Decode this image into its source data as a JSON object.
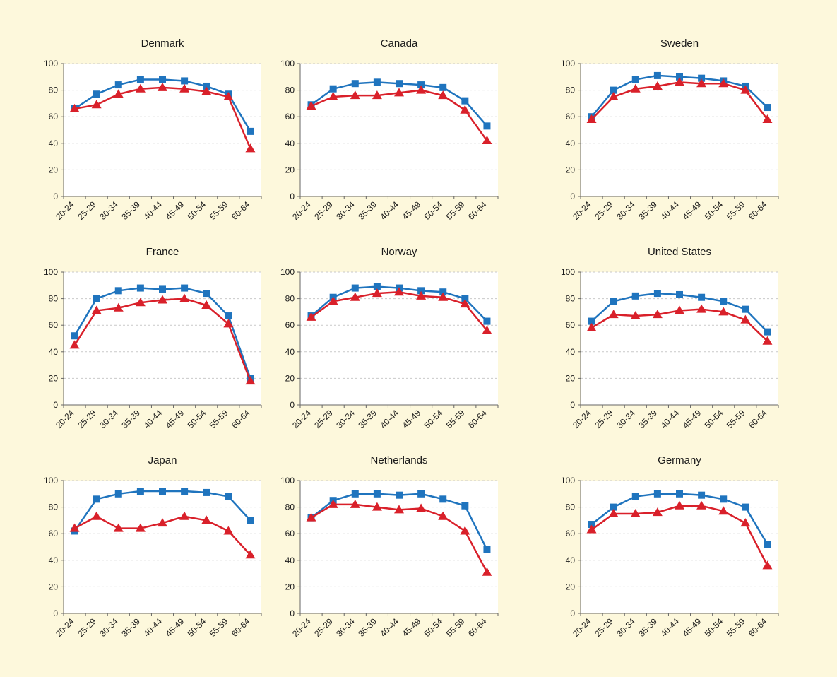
{
  "chart_data": [
    {
      "type": "line",
      "title": "Denmark",
      "categories": [
        "20-24",
        "25-29",
        "30-34",
        "35-39",
        "40-44",
        "45-49",
        "50-54",
        "55-59",
        "60-64"
      ],
      "ylim": [
        0,
        100
      ],
      "yticks": [
        0,
        20,
        40,
        60,
        80,
        100
      ],
      "grid": "horizontal",
      "series": [
        {
          "values": [
            66,
            77,
            84,
            88,
            88,
            87,
            83,
            77,
            49
          ],
          "color": "#1f74be",
          "marker": "square"
        },
        {
          "values": [
            66,
            69,
            77,
            81,
            82,
            81,
            79,
            75,
            36
          ],
          "color": "#d9202a",
          "marker": "triangle"
        }
      ]
    },
    {
      "type": "line",
      "title": "Canada",
      "categories": [
        "20-24",
        "25-29",
        "30-34",
        "35-39",
        "40-44",
        "45-49",
        "50-54",
        "55-59",
        "60-64"
      ],
      "ylim": [
        0,
        100
      ],
      "yticks": [
        0,
        20,
        40,
        60,
        80,
        100
      ],
      "grid": "horizontal",
      "series": [
        {
          "values": [
            69,
            81,
            85,
            86,
            85,
            84,
            82,
            72,
            53
          ],
          "color": "#1f74be",
          "marker": "square"
        },
        {
          "values": [
            68,
            75,
            76,
            76,
            78,
            80,
            76,
            65,
            42
          ],
          "color": "#d9202a",
          "marker": "triangle"
        }
      ]
    },
    {
      "type": "line",
      "title": "Sweden",
      "categories": [
        "20-24",
        "25-29",
        "30-34",
        "35-39",
        "40-44",
        "45-49",
        "50-54",
        "55-59",
        "60-64"
      ],
      "ylim": [
        0,
        100
      ],
      "yticks": [
        0,
        20,
        40,
        60,
        80,
        100
      ],
      "grid": "horizontal",
      "series": [
        {
          "values": [
            60,
            80,
            88,
            91,
            90,
            89,
            87,
            83,
            67
          ],
          "color": "#1f74be",
          "marker": "square"
        },
        {
          "values": [
            58,
            75,
            81,
            83,
            86,
            85,
            85,
            80,
            58
          ],
          "color": "#d9202a",
          "marker": "triangle"
        }
      ]
    },
    {
      "type": "line",
      "title": "France",
      "categories": [
        "20-24",
        "25-29",
        "30-34",
        "35-39",
        "40-44",
        "45-49",
        "50-54",
        "55-59",
        "60-64"
      ],
      "ylim": [
        0,
        100
      ],
      "yticks": [
        0,
        20,
        40,
        60,
        80,
        100
      ],
      "grid": "horizontal",
      "series": [
        {
          "values": [
            52,
            80,
            86,
            88,
            87,
            88,
            84,
            67,
            20
          ],
          "color": "#1f74be",
          "marker": "square"
        },
        {
          "values": [
            45,
            71,
            73,
            77,
            79,
            80,
            75,
            61,
            18
          ],
          "color": "#d9202a",
          "marker": "triangle"
        }
      ]
    },
    {
      "type": "line",
      "title": "Norway",
      "categories": [
        "20-24",
        "25-29",
        "30-34",
        "35-39",
        "40-44",
        "45-49",
        "50-54",
        "55-59",
        "60-64"
      ],
      "ylim": [
        0,
        100
      ],
      "yticks": [
        0,
        20,
        40,
        60,
        80,
        100
      ],
      "grid": "horizontal",
      "series": [
        {
          "values": [
            67,
            81,
            88,
            89,
            88,
            86,
            85,
            80,
            63
          ],
          "color": "#1f74be",
          "marker": "square"
        },
        {
          "values": [
            66,
            78,
            81,
            84,
            85,
            82,
            81,
            76,
            56
          ],
          "color": "#d9202a",
          "marker": "triangle"
        }
      ]
    },
    {
      "type": "line",
      "title": "United States",
      "categories": [
        "20-24",
        "25-29",
        "30-34",
        "35-39",
        "40-44",
        "45-49",
        "50-54",
        "55-59",
        "60-64"
      ],
      "ylim": [
        0,
        100
      ],
      "yticks": [
        0,
        20,
        40,
        60,
        80,
        100
      ],
      "grid": "horizontal",
      "series": [
        {
          "values": [
            63,
            78,
            82,
            84,
            83,
            81,
            78,
            72,
            55
          ],
          "color": "#1f74be",
          "marker": "square"
        },
        {
          "values": [
            58,
            68,
            67,
            68,
            71,
            72,
            70,
            64,
            48
          ],
          "color": "#d9202a",
          "marker": "triangle"
        }
      ]
    },
    {
      "type": "line",
      "title": "Japan",
      "categories": [
        "20-24",
        "25-29",
        "30-34",
        "35-39",
        "40-44",
        "45-49",
        "50-54",
        "55-59",
        "60-64"
      ],
      "ylim": [
        0,
        100
      ],
      "yticks": [
        0,
        20,
        40,
        60,
        80,
        100
      ],
      "grid": "horizontal",
      "series": [
        {
          "values": [
            62,
            86,
            90,
            92,
            92,
            92,
            91,
            88,
            70
          ],
          "color": "#1f74be",
          "marker": "square"
        },
        {
          "values": [
            64,
            73,
            64,
            64,
            68,
            73,
            70,
            62,
            44
          ],
          "color": "#d9202a",
          "marker": "triangle"
        }
      ]
    },
    {
      "type": "line",
      "title": "Netherlands",
      "categories": [
        "20-24",
        "25-29",
        "30-34",
        "35-39",
        "40-44",
        "45-49",
        "50-54",
        "55-59",
        "60-64"
      ],
      "ylim": [
        0,
        100
      ],
      "yticks": [
        0,
        20,
        40,
        60,
        80,
        100
      ],
      "grid": "horizontal",
      "series": [
        {
          "values": [
            72,
            85,
            90,
            90,
            89,
            90,
            86,
            81,
            48
          ],
          "color": "#1f74be",
          "marker": "square"
        },
        {
          "values": [
            72,
            82,
            82,
            80,
            78,
            79,
            73,
            62,
            31
          ],
          "color": "#d9202a",
          "marker": "triangle"
        }
      ]
    },
    {
      "type": "line",
      "title": "Germany",
      "categories": [
        "20-24",
        "25-29",
        "30-34",
        "35-39",
        "40-44",
        "45-49",
        "50-54",
        "55-59",
        "60-64"
      ],
      "ylim": [
        0,
        100
      ],
      "yticks": [
        0,
        20,
        40,
        60,
        80,
        100
      ],
      "grid": "horizontal",
      "series": [
        {
          "values": [
            67,
            80,
            88,
            90,
            90,
            89,
            86,
            80,
            52
          ],
          "color": "#1f74be",
          "marker": "square"
        },
        {
          "values": [
            63,
            75,
            75,
            76,
            81,
            81,
            77,
            68,
            36
          ],
          "color": "#d9202a",
          "marker": "triangle"
        }
      ]
    }
  ]
}
